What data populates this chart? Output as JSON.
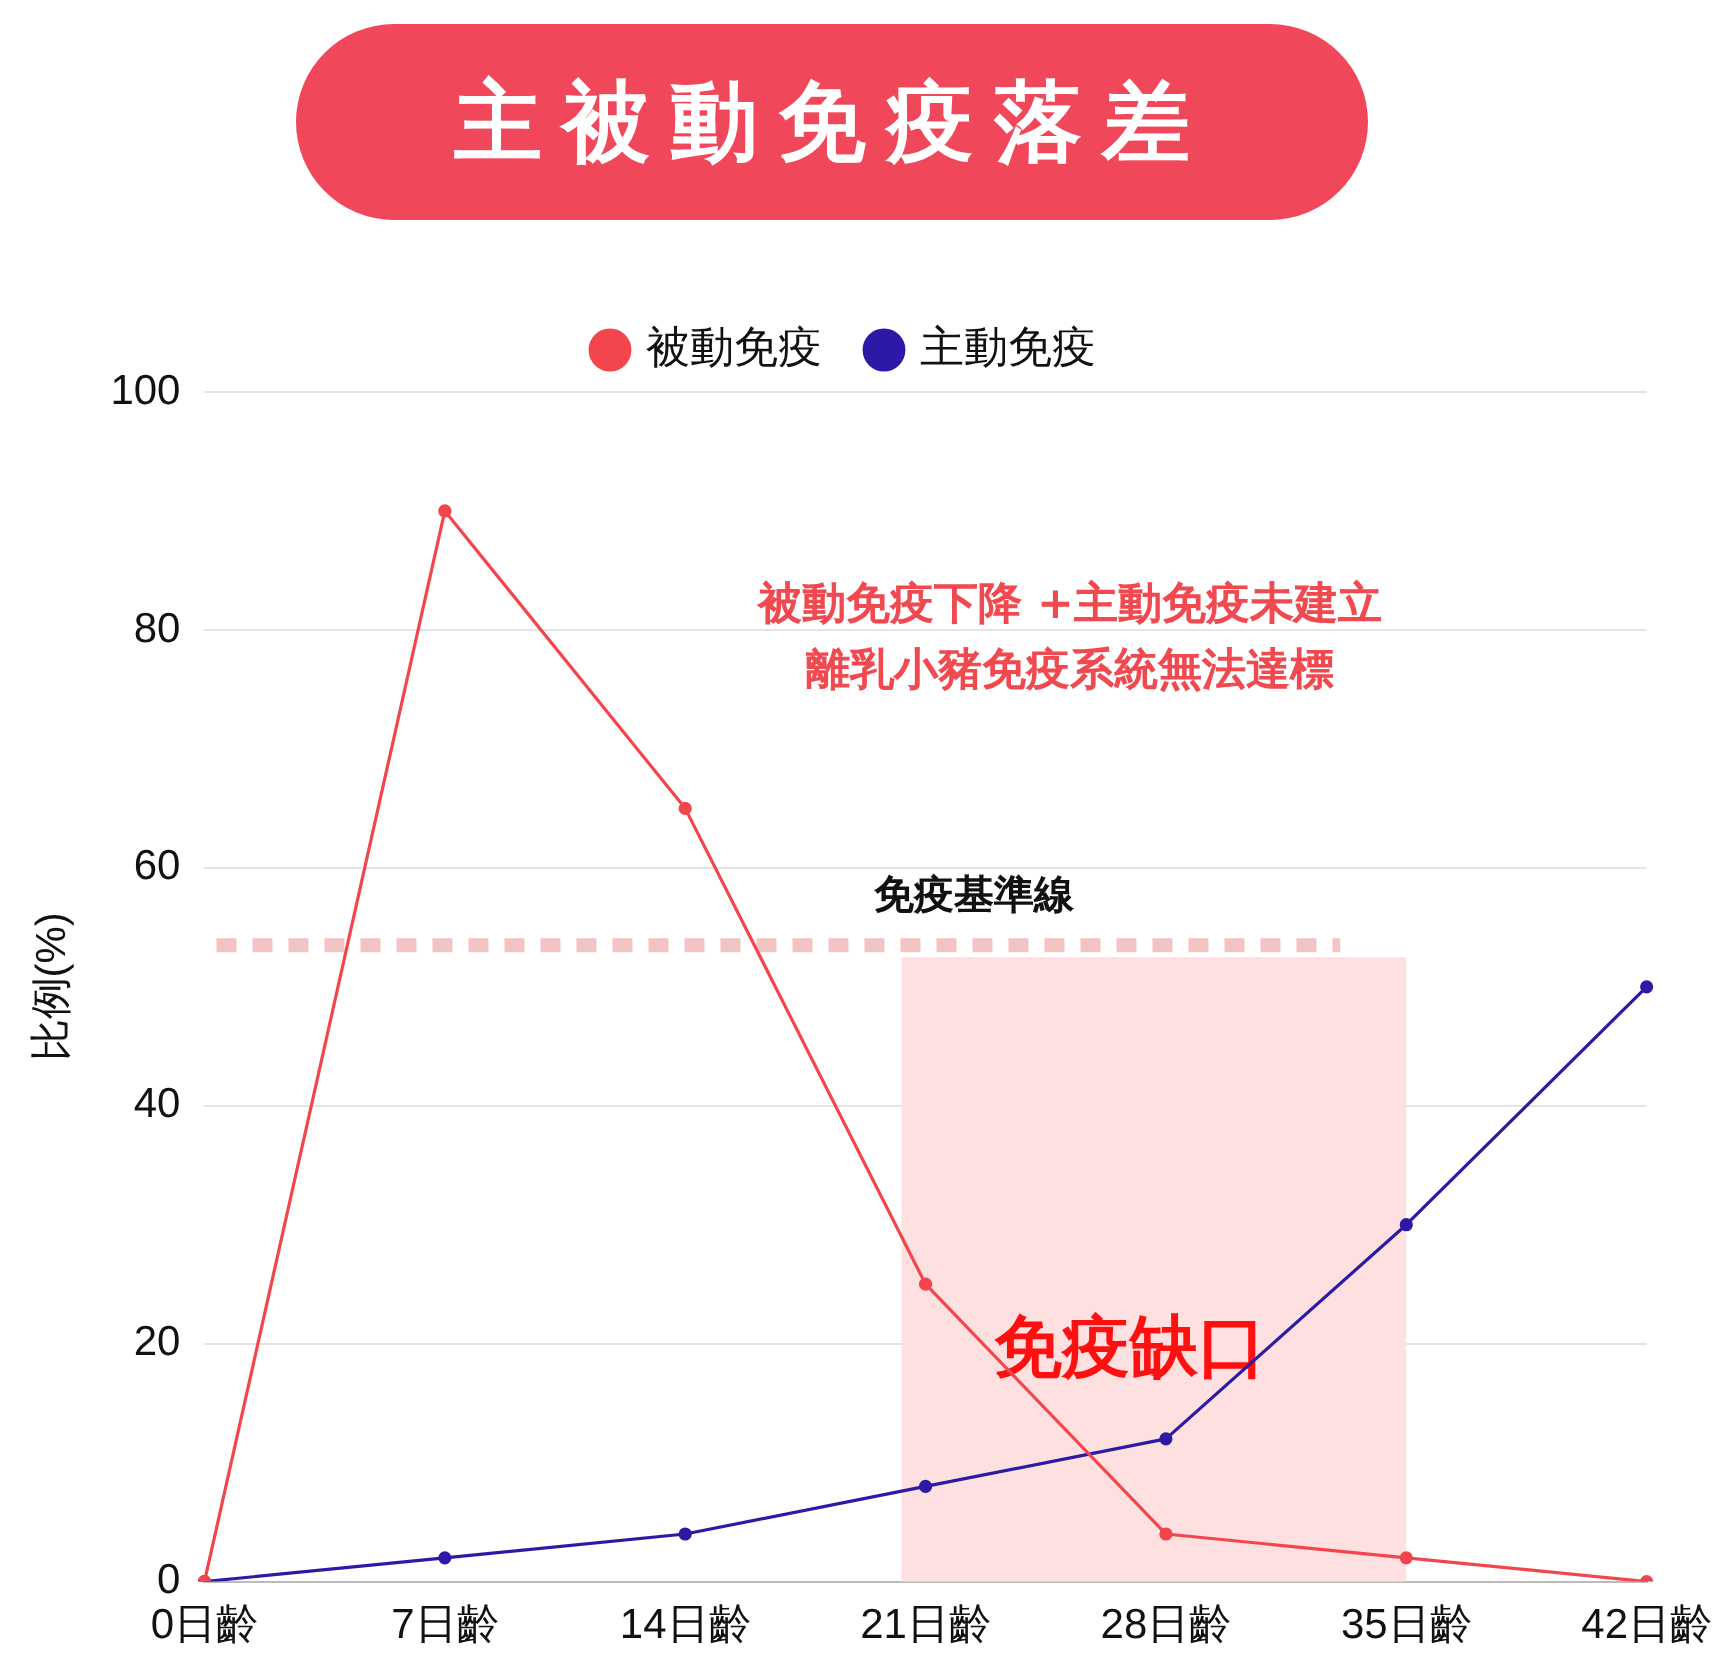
{
  "chart_data": {
    "type": "line",
    "title": "主被動免疫落差",
    "ylabel": "比例(%)",
    "categories": [
      "0日齡",
      "7日齡",
      "14日齡",
      "21日齡",
      "28日齡",
      "35日齡",
      "42日齡"
    ],
    "series": [
      {
        "name": "被動免疫",
        "color": "#f2464c",
        "values": [
          0,
          90,
          65,
          25,
          4,
          2,
          0
        ]
      },
      {
        "name": "主動免疫",
        "color": "#2c1aa6",
        "values": [
          0,
          2,
          4,
          8,
          12,
          30,
          50
        ]
      }
    ],
    "ylim": [
      0,
      100
    ],
    "yticks": [
      0,
      20,
      40,
      60,
      80,
      100
    ],
    "grid": "y",
    "legend": "top",
    "marker": "circle",
    "line_style": "solid",
    "ref_lines": [
      {
        "axis": "y",
        "value": 53.5,
        "label": "免疫基準線",
        "color": "#f2c4c4",
        "line_style": "dashed"
      }
    ],
    "bands": [
      {
        "axis": "x",
        "from": "21日齡",
        "to": "35日齡",
        "label": "免疫缺口",
        "color": "#fde0df"
      }
    ],
    "annotations": [
      "被動免疫下降 +主動免疫未建立",
      "離乳小豬免疫系統無法達標"
    ]
  }
}
